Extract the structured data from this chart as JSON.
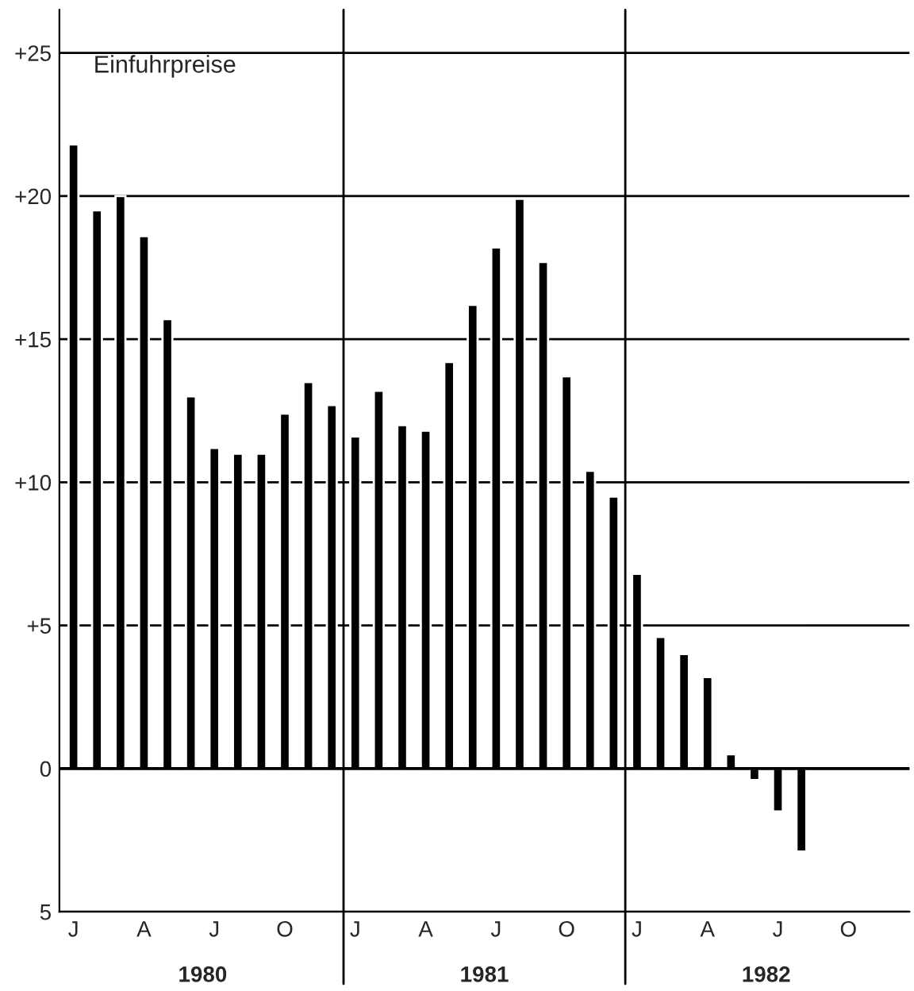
{
  "chart_data": {
    "type": "bar",
    "title": "Einfuhrpreise",
    "categories": [
      "J",
      null,
      null,
      "A",
      null,
      null,
      "J",
      null,
      null,
      "O",
      null,
      null,
      "J",
      null,
      null,
      "A",
      null,
      null,
      "J",
      null,
      null,
      "O",
      null,
      null,
      "J",
      null,
      null,
      "A",
      null,
      null,
      "J",
      null,
      null,
      "O",
      null,
      null
    ],
    "values": [
      21.8,
      19.5,
      20.0,
      18.6,
      15.7,
      13.0,
      11.2,
      11.0,
      11.0,
      12.4,
      13.5,
      12.7,
      11.6,
      13.2,
      12.0,
      11.8,
      14.2,
      16.2,
      18.2,
      19.9,
      17.7,
      13.7,
      10.4,
      9.5,
      6.8,
      4.6,
      4.0,
      3.2,
      0.5,
      -0.4,
      -1.5,
      -2.9,
      null,
      null,
      null,
      null
    ],
    "color": "#000000",
    "ylim": [
      -5,
      26.5
    ],
    "yticks": [
      {
        "value": -5,
        "label": "5"
      },
      0,
      {
        "value": 5,
        "label": "+5"
      },
      {
        "value": 10,
        "label": "+10"
      },
      {
        "value": 15,
        "label": "+15"
      },
      {
        "value": 20,
        "label": "+20"
      },
      {
        "value": 25,
        "label": "+25"
      }
    ],
    "grid": "y",
    "annotations": [
      "1980",
      "1981",
      "1982"
    ]
  }
}
